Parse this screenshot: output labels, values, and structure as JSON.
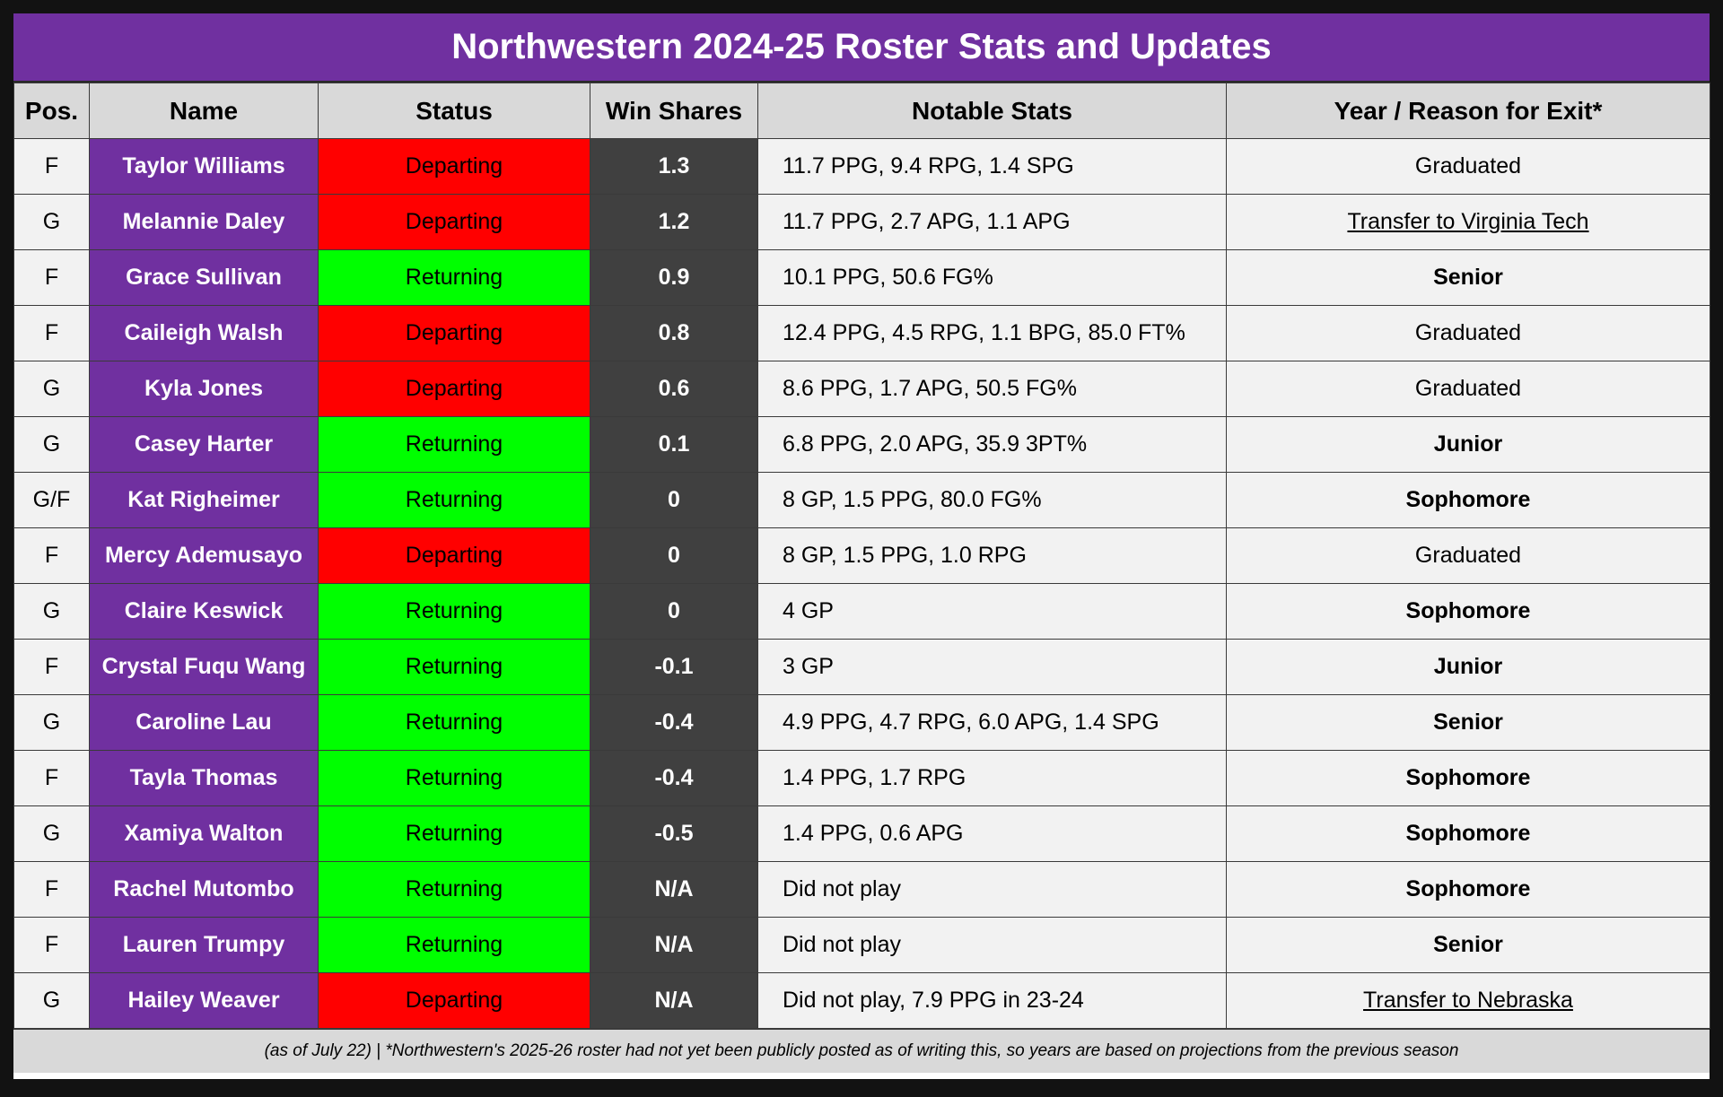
{
  "title": "Northwestern 2024-25 Roster Stats and Updates",
  "columns": [
    "Pos.",
    "Name",
    "Status",
    "Win Shares",
    "Notable Stats",
    "Year / Reason for Exit*"
  ],
  "status_colors": {
    "Departing": "#ff0000",
    "Returning": "#00ff00"
  },
  "accent_color": "#7030a0",
  "rows": [
    {
      "pos": "F",
      "name": "Taylor Williams",
      "status": "Departing",
      "ws": "1.3",
      "stats": "11.7 PPG, 9.4 RPG, 1.4 SPG",
      "year": "Graduated",
      "year_style": "plain"
    },
    {
      "pos": "G",
      "name": "Melannie Daley",
      "status": "Departing",
      "ws": "1.2",
      "stats": "11.7 PPG, 2.7 APG, 1.1 APG",
      "year": "Transfer to Virginia Tech",
      "year_style": "link"
    },
    {
      "pos": "F",
      "name": "Grace Sullivan",
      "status": "Returning",
      "ws": "0.9",
      "stats": "10.1 PPG, 50.6 FG%",
      "year": "Senior",
      "year_style": "bold"
    },
    {
      "pos": "F",
      "name": "Caileigh Walsh",
      "status": "Departing",
      "ws": "0.8",
      "stats": "12.4 PPG, 4.5 RPG, 1.1 BPG, 85.0 FT%",
      "year": "Graduated",
      "year_style": "plain"
    },
    {
      "pos": "G",
      "name": "Kyla Jones",
      "status": "Departing",
      "ws": "0.6",
      "stats": "8.6 PPG, 1.7 APG, 50.5 FG%",
      "year": "Graduated",
      "year_style": "plain"
    },
    {
      "pos": "G",
      "name": "Casey Harter",
      "status": "Returning",
      "ws": "0.1",
      "stats": "6.8 PPG, 2.0 APG, 35.9 3PT%",
      "year": "Junior",
      "year_style": "bold"
    },
    {
      "pos": "G/F",
      "name": "Kat Righeimer",
      "status": "Returning",
      "ws": "0",
      "stats": "8 GP, 1.5 PPG, 80.0 FG%",
      "year": "Sophomore",
      "year_style": "bold"
    },
    {
      "pos": "F",
      "name": "Mercy Ademusayo",
      "status": "Departing",
      "ws": "0",
      "stats": "8 GP, 1.5 PPG, 1.0 RPG",
      "year": "Graduated",
      "year_style": "plain"
    },
    {
      "pos": "G",
      "name": "Claire Keswick",
      "status": "Returning",
      "ws": "0",
      "stats": "4 GP",
      "year": "Sophomore",
      "year_style": "bold"
    },
    {
      "pos": "F",
      "name": "Crystal Fuqu Wang",
      "status": "Returning",
      "ws": "-0.1",
      "stats": "3 GP",
      "year": "Junior",
      "year_style": "bold"
    },
    {
      "pos": "G",
      "name": "Caroline Lau",
      "status": "Returning",
      "ws": "-0.4",
      "stats": "4.9 PPG, 4.7 RPG, 6.0 APG, 1.4 SPG",
      "year": "Senior",
      "year_style": "bold"
    },
    {
      "pos": "F",
      "name": "Tayla Thomas",
      "status": "Returning",
      "ws": "-0.4",
      "stats": "1.4 PPG, 1.7 RPG",
      "year": "Sophomore",
      "year_style": "bold"
    },
    {
      "pos": "G",
      "name": "Xamiya Walton",
      "status": "Returning",
      "ws": "-0.5",
      "stats": "1.4 PPG, 0.6 APG",
      "year": "Sophomore",
      "year_style": "bold"
    },
    {
      "pos": "F",
      "name": "Rachel Mutombo",
      "status": "Returning",
      "ws": "N/A",
      "stats": "Did not play",
      "year": "Sophomore",
      "year_style": "bold"
    },
    {
      "pos": "F",
      "name": "Lauren Trumpy",
      "status": "Returning",
      "ws": "N/A",
      "stats": "Did not play",
      "year": "Senior",
      "year_style": "bold"
    },
    {
      "pos": "G",
      "name": "Hailey Weaver",
      "status": "Departing",
      "ws": "N/A",
      "stats": "Did not play, 7.9 PPG in 23-24",
      "year": "Transfer to Nebraska",
      "year_style": "link"
    }
  ],
  "footer": "(as of July 22) | *Northwestern's 2025-26 roster had not yet been publicly posted as of writing this, so years are based on projections from the previous season"
}
